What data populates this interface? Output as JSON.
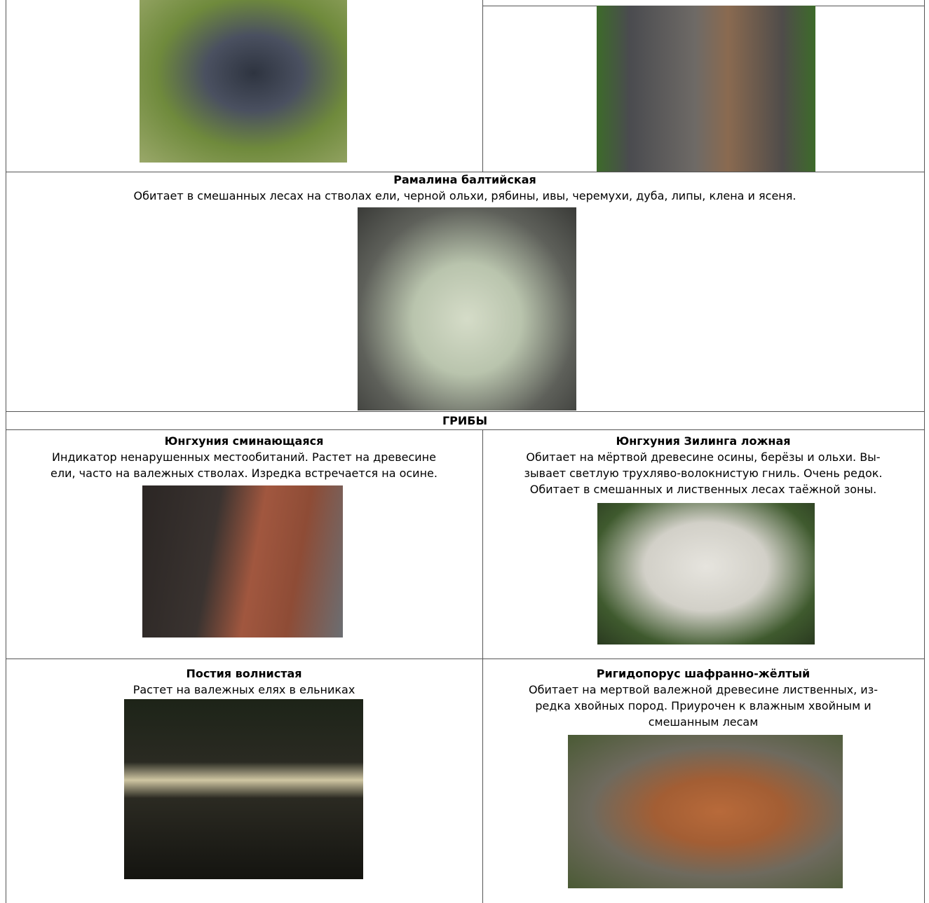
{
  "table": {
    "lichen_row": {
      "title": "Рамалина балтийская",
      "description": [
        "Обитает в смешанных лесах на стволах ели, черной ольхи, рябины, ивы, черемухи, дуба, липы, клена и ясеня."
      ]
    },
    "section_header": "ГРИБЫ",
    "cells": [
      {
        "title": "Юнгхуния сминающаяся",
        "description": [
          "Индикатор ненарушенных местообитаний. Растет на древесине",
          "ели, часто на валежных стволах. Изредка встречается на осине."
        ]
      },
      {
        "title": "Юнгхуния Зилинга ложная",
        "description": [
          "Обитает на мёртвой древесине осины, берёзы и ольхи. Вы-",
          "зывает светлую трухляво-волокнистую гниль. Очень редок.",
          "Обитает в смешанных и лиственных лесах таёжной зоны."
        ]
      },
      {
        "title": "Постия волнистая",
        "description": [
          "Растет на валежных елях в ельниках"
        ]
      },
      {
        "title": "Ригидопорус шафранно-жёлтый",
        "description": [
          "Обитает на мертвой валежной древесине лиственных, из-",
          "редка хвойных пород. Приурочен к влажным хвойным и",
          "смешанным лесам"
        ]
      }
    ]
  }
}
